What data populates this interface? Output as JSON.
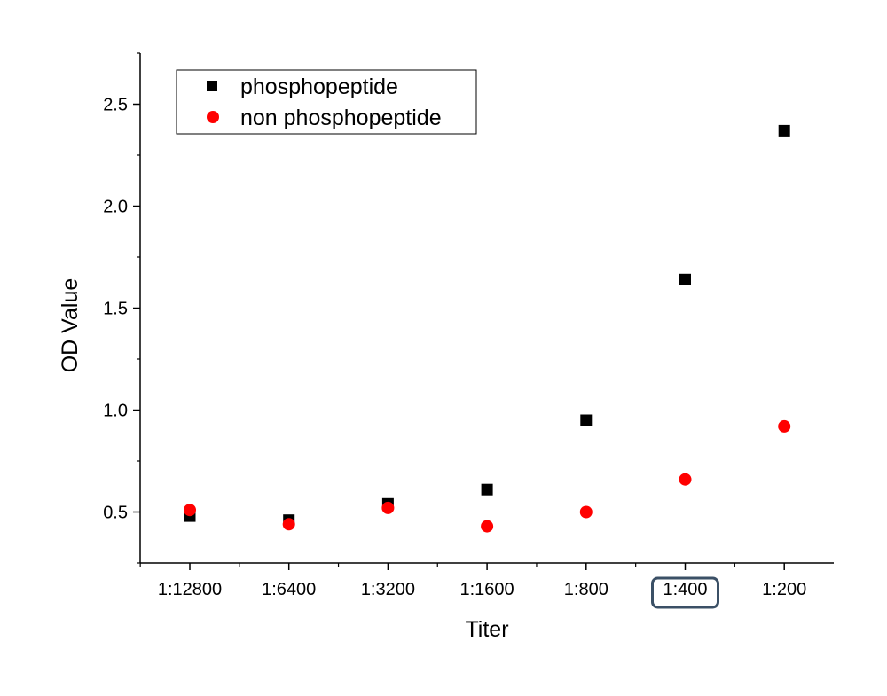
{
  "chart_data": {
    "type": "scatter",
    "categories": [
      "1:12800",
      "1:6400",
      "1:3200",
      "1:1600",
      "1:800",
      "1:400",
      "1:200"
    ],
    "series": [
      {
        "name": "phosphopeptide",
        "marker": "square",
        "color": "#000000",
        "values": [
          0.48,
          0.46,
          0.54,
          0.61,
          0.95,
          1.64,
          2.37
        ]
      },
      {
        "name": "non phosphopeptide",
        "marker": "circle",
        "color": "#ff0000",
        "values": [
          0.51,
          0.44,
          0.52,
          0.43,
          0.5,
          0.66,
          0.92
        ]
      }
    ],
    "xlabel": "Titer",
    "ylabel": "OD Value",
    "ylim": [
      0.25,
      2.75
    ],
    "yticks": [
      0.5,
      1.0,
      1.5,
      2.0,
      2.5
    ],
    "ytick_labels": [
      "0.5",
      "1.0",
      "1.5",
      "2.0",
      "2.5"
    ],
    "legend_position": "top-left",
    "grid": false,
    "highlighted_category": "1:400",
    "highlight_color": "#3b5066"
  }
}
